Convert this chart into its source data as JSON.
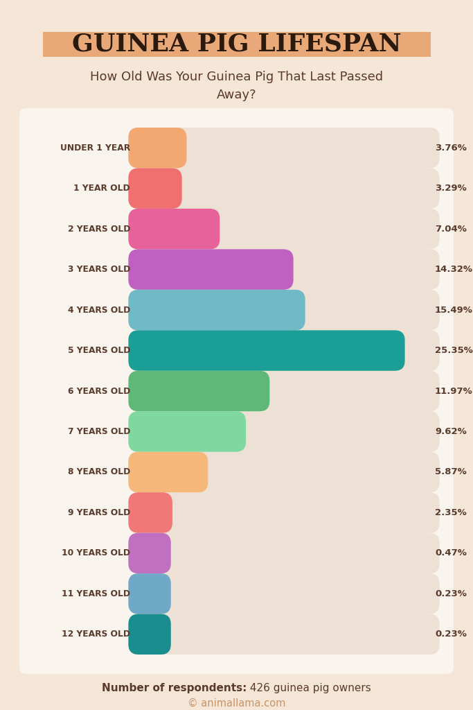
{
  "title": "GUINEA PIG LIFESPAN",
  "subtitle": "How Old Was Your Guinea Pig That Last Passed\nAway?",
  "categories": [
    "UNDER 1 YEAR",
    "1 YEAR OLD",
    "2 YEARS OLD",
    "3 YEARS OLD",
    "4 YEARS OLD",
    "5 YEARS OLD",
    "6 YEARS OLD",
    "7 YEARS OLD",
    "8 YEARS OLD",
    "9 YEARS OLD",
    "10 YEARS OLD",
    "11 YEARS OLD",
    "12 YEARS OLD"
  ],
  "values": [
    3.76,
    3.29,
    7.04,
    14.32,
    15.49,
    25.35,
    11.97,
    9.62,
    5.87,
    2.35,
    0.47,
    0.23,
    0.23
  ],
  "labels": [
    "3.76%",
    "3.29%",
    "7.04%",
    "14.32%",
    "15.49%",
    "25.35%",
    "11.97%",
    "9.62%",
    "5.87%",
    "2.35%",
    "0.47%",
    "0.23%",
    "0.23%"
  ],
  "bar_colors": [
    "#F2A870",
    "#F07070",
    "#E8629A",
    "#C060C0",
    "#70BAC8",
    "#1A9E96",
    "#5EB87A",
    "#7ED8A0",
    "#F5B87A",
    "#F07878",
    "#C070C0",
    "#70A8C8",
    "#1A8E8E"
  ],
  "bg_color": "#F5E6D8",
  "panel_color": "#FAF4EE",
  "bar_bg_color": "#EDE0D4",
  "title_color": "#2A1A0E",
  "title_highlight_color": "#E8A878",
  "text_color": "#5A3A2A",
  "label_color": "#5A3A2A",
  "footer_bold": "Number of respondents:",
  "footer_normal": " 426 guinea pig owners",
  "copyright": "© animallama.com",
  "copyright_color": "#C8956A",
  "max_val": 25.35
}
